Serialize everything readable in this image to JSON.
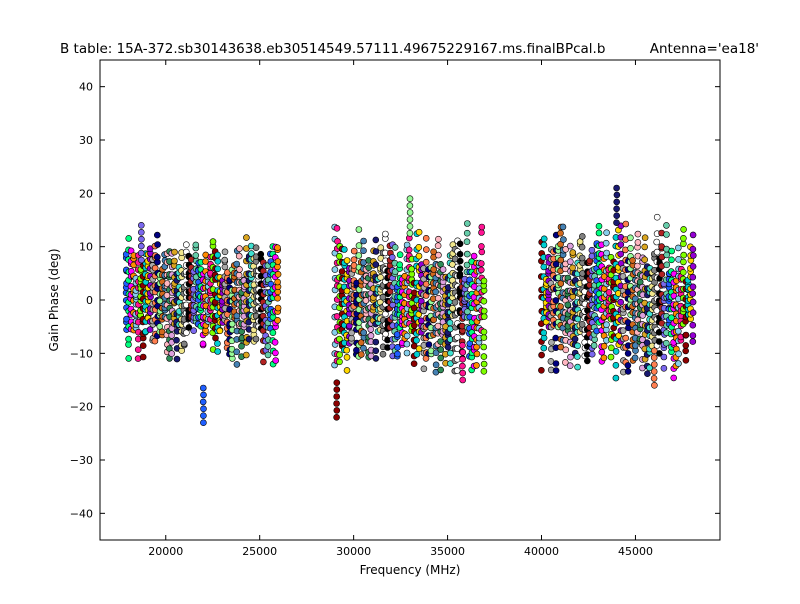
{
  "chart_data": {
    "type": "scatter",
    "title": "B table: 15A-372.sb30143638.eb30514549.57111.49675229167.ms.finalBPcal.b",
    "annotation": "Antenna='ea18'",
    "xlabel": "Frequency (MHz)",
    "ylabel": "Gain Phase (deg)",
    "xlim": [
      16500,
      49500
    ],
    "ylim": [
      -45,
      45
    ],
    "xticks": [
      20000,
      25000,
      30000,
      35000,
      40000,
      45000
    ],
    "yticks": [
      -40,
      -30,
      -20,
      -10,
      0,
      10,
      20,
      30,
      40
    ],
    "grid": false,
    "legend": "none",
    "marker": "circle",
    "marker_edge_color": "#000000",
    "frequency_ranges_mhz": [
      [
        17900,
        26000
      ],
      [
        29000,
        37000
      ],
      [
        40000,
        48100
      ]
    ],
    "spectral_window_width_mhz": 128,
    "channels_per_window": 12,
    "window_colors": [
      "#1f5fff",
      "#00ff7f",
      "#ff00ff",
      "#ff8c00",
      "#87ceeb",
      "#ff1493",
      "#7fff00",
      "#8b0000",
      "#00ced1",
      "#ffd700",
      "#9400d3",
      "#a9a9a9",
      "#ff7f50",
      "#000080",
      "#98fb98",
      "#d2691e",
      "#4682b4",
      "#ffb6c1",
      "#2e8b57",
      "#dda0dd",
      "#daa520",
      "#191970",
      "#40e0d0",
      "#f0e68c",
      "#808080",
      "#ffffff",
      "#000000",
      "#b22222",
      "#7b68ee",
      "#66cdaa"
    ],
    "series_summary": [
      {
        "range_mhz": [
          17900,
          26000
        ],
        "typical_min_deg": -12,
        "typical_max_deg": 12,
        "extreme_min_deg": -23,
        "extreme_max_deg": 14
      },
      {
        "range_mhz": [
          29000,
          37000
        ],
        "typical_min_deg": -14,
        "typical_max_deg": 14,
        "extreme_min_deg": -22,
        "extreme_max_deg": 19
      },
      {
        "range_mhz": [
          40000,
          48100
        ],
        "typical_min_deg": -14,
        "typical_max_deg": 15,
        "extreme_min_deg": -16,
        "extreme_max_deg": 21
      }
    ],
    "extreme_points": [
      {
        "x": 22000,
        "y": -23
      },
      {
        "x": 29100,
        "y": -22
      },
      {
        "x": 33000,
        "y": 19
      },
      {
        "x": 44000,
        "y": 21
      },
      {
        "x": 18700,
        "y": 14
      },
      {
        "x": 35800,
        "y": -15
      },
      {
        "x": 46000,
        "y": -16
      }
    ]
  }
}
